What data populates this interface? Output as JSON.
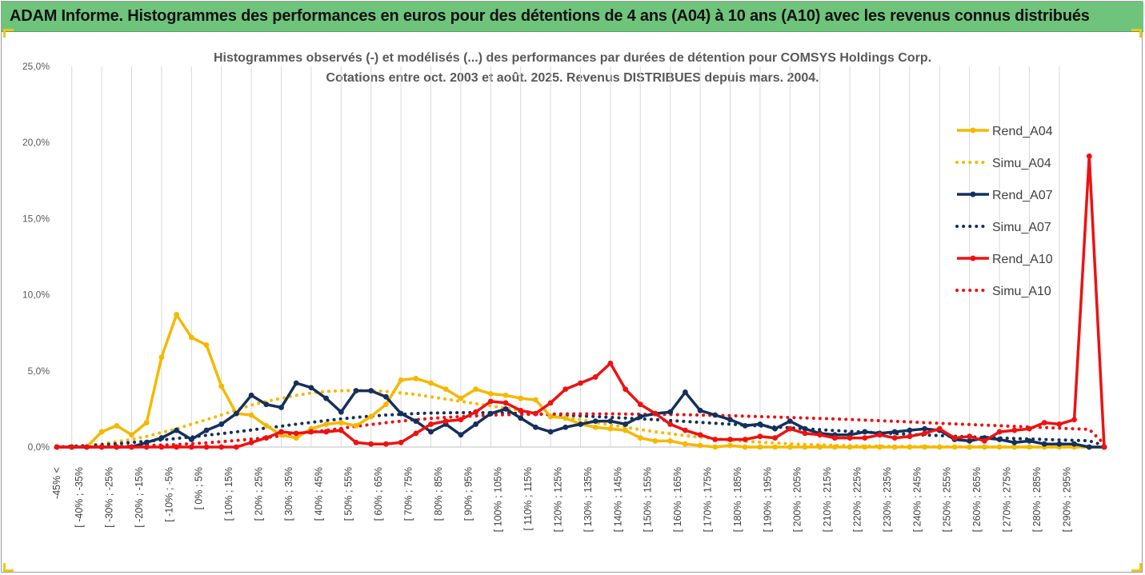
{
  "banner_title": "ADAM Informe. Histogrammes des performances en euros pour des détentions de 4 ans (A04) à 10 ans (A10) avec les revenus connus distribués",
  "colors": {
    "banner": "#6fc47c",
    "A04": "#f5b800",
    "A07": "#14305c",
    "A10": "#ee1111"
  },
  "chart_data": {
    "type": "line",
    "title": "Histogrammes observés (-) et modélisés (...) des performances par durées de détention pour COMSYS Holdings Corp.",
    "subtitle": "Cotations entre oct. 2003 et août. 2025. Revenus DISTRIBUES depuis mars. 2004.",
    "ylim": [
      0,
      25
    ],
    "y_ticks": [
      "0,0%",
      "5,0%",
      "10,0%",
      "15,0%",
      "20,0%",
      "25,0%"
    ],
    "legend_position": "right",
    "grid": "vertical",
    "x_labels": [
      "-45% <",
      "[ -40% ; -35%",
      "[ -30% ; -25%",
      "[ -20% ; -15%",
      "[ -10% ; -5%",
      "[ 0% ; 5%",
      "[ 10% ; 15%",
      "[ 20% ; 25%",
      "[ 30% ; 35%",
      "[ 40% ; 45%",
      "[ 50% ; 55%",
      "[ 60% ; 65%",
      "[ 70% ; 75%",
      "[ 80% ; 85%",
      "[ 90% ; 95%",
      "[ 100% ; 105%",
      "[ 110% ; 115%",
      "[ 120% ; 125%",
      "[ 130% ; 135%",
      "[ 140% ; 145%",
      "[ 150% ; 155%",
      "[ 160% ; 165%",
      "[ 170% ; 175%",
      "[ 180% ; 185%",
      "[ 190% ; 195%",
      "[ 200% ; 205%",
      "[ 210% ; 215%",
      "[ 220% ; 225%",
      "[ 230% ; 235%",
      "[ 240% ; 245%",
      "[ 250% ; 255%",
      "[ 260% ; 265%",
      "[ 270% ; 275%",
      "[ 280% ; 285%",
      "[ 290% ; 295%"
    ],
    "series": [
      {
        "name": "Rend_A04",
        "style": "solid",
        "color": "#f5b800",
        "values": [
          0,
          0,
          0,
          1,
          1.4,
          0.8,
          1.6,
          5.9,
          8.7,
          7.2,
          6.7,
          4,
          2.2,
          2.1,
          1.4,
          0.8,
          0.6,
          1.2,
          1.5,
          1.6,
          1.4,
          2,
          2.8,
          4.4,
          4.5,
          4.2,
          3.8,
          3.2,
          3.8,
          3.5,
          3.4,
          3.2,
          3.1,
          2,
          1.9,
          1.5,
          1.3,
          1.2,
          1.1,
          0.6,
          0.4,
          0.4,
          0.2,
          0.1,
          0,
          0.1,
          0,
          0,
          0,
          0,
          0,
          0,
          0,
          0,
          0,
          0,
          0,
          0,
          0,
          0,
          0,
          0,
          0,
          0,
          0,
          0,
          0,
          0,
          0,
          0,
          0
        ]
      },
      {
        "name": "Simu_A04",
        "style": "dotted",
        "color": "#f5b800",
        "values": [
          0,
          0.05,
          0.1,
          0.2,
          0.35,
          0.5,
          0.7,
          0.95,
          1.2,
          1.5,
          1.8,
          2.1,
          2.45,
          2.75,
          3,
          3.2,
          3.4,
          3.55,
          3.65,
          3.7,
          3.72,
          3.7,
          3.65,
          3.55,
          3.45,
          3.3,
          3.15,
          3,
          2.85,
          2.7,
          2.55,
          2.4,
          2.25,
          2.1,
          1.95,
          1.8,
          1.62,
          1.45,
          1.3,
          1.15,
          1,
          0.88,
          0.75,
          0.65,
          0.55,
          0.46,
          0.38,
          0.32,
          0.26,
          0.21,
          0.17,
          0.14,
          0.11,
          0.09,
          0.07,
          0.05,
          0.04,
          0.03,
          0.02,
          0.02,
          0.01,
          0.01,
          0.01,
          0,
          0,
          0,
          0,
          0,
          0,
          0,
          0
        ]
      },
      {
        "name": "Rend_A07",
        "style": "solid",
        "color": "#14305c",
        "values": [
          0,
          0,
          0,
          0,
          0,
          0,
          0.3,
          0.6,
          1.1,
          0.5,
          1.1,
          1.5,
          2.2,
          3.4,
          2.8,
          2.6,
          4.2,
          3.9,
          3.2,
          2.3,
          3.7,
          3.7,
          3.3,
          2.2,
          1.7,
          1,
          1.5,
          0.8,
          1.5,
          2.2,
          2.5,
          1.9,
          1.3,
          1,
          1.3,
          1.5,
          1.7,
          1.7,
          1.5,
          2,
          2.2,
          2.3,
          3.6,
          2.4,
          2.1,
          1.8,
          1.4,
          1.5,
          1.2,
          1.7,
          1.2,
          0.9,
          0.8,
          0.8,
          1,
          0.9,
          1,
          1.1,
          1.2,
          1.1,
          0.5,
          0.4,
          0.6,
          0.5,
          0.3,
          0.4,
          0.2,
          0.2,
          0.2,
          0,
          0
        ]
      },
      {
        "name": "Simu_A07",
        "style": "dotted",
        "color": "#14305c",
        "values": [
          0,
          0.05,
          0.1,
          0.15,
          0.22,
          0.3,
          0.38,
          0.47,
          0.56,
          0.66,
          0.77,
          0.88,
          1,
          1.12,
          1.25,
          1.37,
          1.5,
          1.62,
          1.74,
          1.85,
          1.95,
          2.03,
          2.1,
          2.15,
          2.2,
          2.23,
          2.25,
          2.26,
          2.26,
          2.25,
          2.23,
          2.2,
          2.17,
          2.13,
          2.09,
          2.05,
          2,
          1.95,
          1.9,
          1.85,
          1.8,
          1.74,
          1.68,
          1.62,
          1.56,
          1.5,
          1.44,
          1.38,
          1.32,
          1.26,
          1.2,
          1.14,
          1.08,
          1.03,
          0.98,
          0.93,
          0.88,
          0.83,
          0.79,
          0.75,
          0.71,
          0.67,
          0.63,
          0.6,
          0.56,
          0.53,
          0.5,
          0.47,
          0.44,
          0.41,
          0.1
        ]
      },
      {
        "name": "Rend_A10",
        "style": "solid",
        "color": "#ee1111",
        "values": [
          0,
          0,
          0,
          0,
          0,
          0,
          0,
          0,
          0,
          0,
          0,
          0,
          0,
          0.3,
          0.6,
          1,
          0.9,
          1,
          1,
          1.1,
          0.3,
          0.2,
          0.2,
          0.3,
          0.9,
          1.5,
          1.7,
          1.8,
          2.3,
          3,
          2.9,
          2.4,
          2.2,
          2.9,
          3.8,
          4.2,
          4.6,
          5.5,
          3.8,
          2.8,
          2.2,
          1.5,
          1.1,
          0.8,
          0.5,
          0.5,
          0.5,
          0.7,
          0.6,
          1.2,
          0.9,
          0.8,
          0.6,
          0.6,
          0.6,
          0.8,
          0.6,
          0.7,
          0.9,
          1.2,
          0.6,
          0.7,
          0.4,
          1,
          1.1,
          1.2,
          1.6,
          1.5,
          1.8,
          19.1,
          0
        ]
      },
      {
        "name": "Simu_A10",
        "style": "dotted",
        "color": "#ee1111",
        "values": [
          0,
          0.01,
          0.02,
          0.03,
          0.05,
          0.07,
          0.1,
          0.13,
          0.17,
          0.22,
          0.28,
          0.35,
          0.43,
          0.52,
          0.62,
          0.73,
          0.85,
          0.98,
          1.1,
          1.23,
          1.36,
          1.48,
          1.6,
          1.7,
          1.8,
          1.88,
          1.95,
          2,
          2.05,
          2.09,
          2.12,
          2.14,
          2.16,
          2.17,
          2.18,
          2.18,
          2.18,
          2.18,
          2.17,
          2.16,
          2.15,
          2.14,
          2.12,
          2.1,
          2.08,
          2.06,
          2.03,
          2,
          1.97,
          1.94,
          1.91,
          1.88,
          1.85,
          1.81,
          1.77,
          1.73,
          1.69,
          1.65,
          1.6,
          1.56,
          1.52,
          1.48,
          1.44,
          1.4,
          1.36,
          1.32,
          1.28,
          1.24,
          1.2,
          1.16,
          0.2
        ]
      }
    ]
  }
}
